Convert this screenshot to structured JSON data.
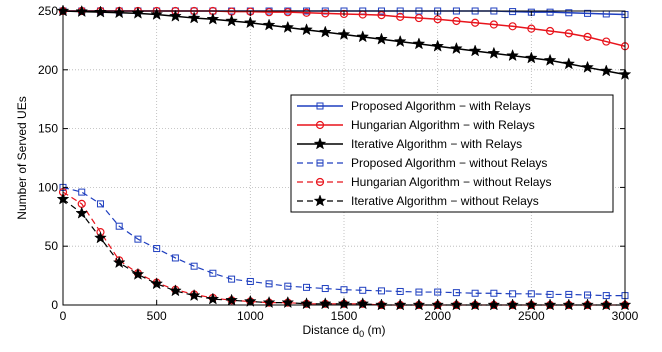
{
  "chart_data": {
    "type": "line",
    "title": "",
    "xlabel": "Distance d",
    "xlabel_subscript": "0",
    "xlabel_suffix": " (m)",
    "ylabel": "Number of Served UEs",
    "xlim": [
      0,
      3000
    ],
    "ylim": [
      0,
      250
    ],
    "xticks": [
      0,
      500,
      1000,
      1500,
      2000,
      2500,
      3000
    ],
    "yticks": [
      0,
      50,
      100,
      150,
      200,
      250
    ],
    "grid": true,
    "legend_position": "center-right",
    "x": [
      0,
      100,
      200,
      300,
      400,
      500,
      600,
      700,
      800,
      900,
      1000,
      1100,
      1200,
      1300,
      1400,
      1500,
      1600,
      1700,
      1800,
      1900,
      2000,
      2100,
      2200,
      2300,
      2400,
      2500,
      2600,
      2700,
      2800,
      2900,
      3000
    ],
    "series": [
      {
        "name": "Proposed Algorithm − with Relays",
        "color": "#1f3fbf",
        "linestyle": "solid",
        "marker": "square",
        "values": [
          250,
          250,
          250,
          250,
          250,
          250,
          250,
          250,
          250,
          250,
          250,
          250,
          250,
          250,
          250,
          250,
          250,
          250,
          250,
          250,
          250,
          250,
          250,
          250,
          249.5,
          249,
          249,
          248.5,
          248,
          247.5,
          247
        ]
      },
      {
        "name": "Hungarian Algorithm − with Relays",
        "color": "#e8141c",
        "linestyle": "solid",
        "marker": "circle",
        "values": [
          250,
          250,
          250,
          250,
          250,
          250,
          250,
          250,
          250,
          249.5,
          249.5,
          249,
          249,
          248.5,
          248,
          247.5,
          247,
          246.5,
          245,
          244,
          243,
          241.5,
          240,
          238.5,
          237,
          235,
          233,
          231,
          228,
          224,
          220
        ]
      },
      {
        "name": "Iterative Algorithm − with Relays",
        "color": "#000000",
        "linestyle": "solid",
        "marker": "star",
        "values": [
          250,
          249.5,
          249,
          248.5,
          248,
          247,
          245.5,
          244,
          243,
          241.5,
          240,
          238,
          236,
          234,
          232,
          230,
          228,
          226,
          224,
          222,
          220,
          218,
          216,
          214,
          212,
          210,
          208,
          205,
          202,
          199,
          196
        ]
      },
      {
        "name": "Proposed Algorithm − without Relays",
        "color": "#1f3fbf",
        "linestyle": "dashed",
        "marker": "square",
        "values": [
          100,
          96,
          86,
          67,
          56,
          48,
          40,
          33,
          27,
          22,
          20,
          18,
          16,
          15,
          14,
          13,
          12.5,
          12,
          11.5,
          11,
          11,
          10.5,
          10,
          10,
          9.5,
          9.5,
          9,
          9,
          8.5,
          8,
          8
        ]
      },
      {
        "name": "Hungarian Algorithm − without Relays",
        "color": "#e8141c",
        "linestyle": "dashed",
        "marker": "circle",
        "values": [
          96,
          86,
          62,
          38,
          27,
          19,
          13,
          9,
          6,
          4,
          3,
          2,
          2,
          1,
          1,
          1,
          1,
          0,
          0,
          0,
          0,
          0,
          0,
          0,
          0,
          0,
          0,
          0,
          0,
          0,
          0
        ]
      },
      {
        "name": "Iterative Algorithm − without Relays",
        "color": "#000000",
        "linestyle": "dashed",
        "marker": "star",
        "values": [
          90,
          78,
          57,
          36,
          26,
          18,
          12,
          8,
          5,
          4,
          3,
          2,
          2,
          1,
          1,
          1,
          1,
          0,
          0,
          0,
          0,
          0,
          0,
          0,
          0,
          0,
          0,
          0,
          0,
          0,
          0
        ]
      }
    ]
  }
}
